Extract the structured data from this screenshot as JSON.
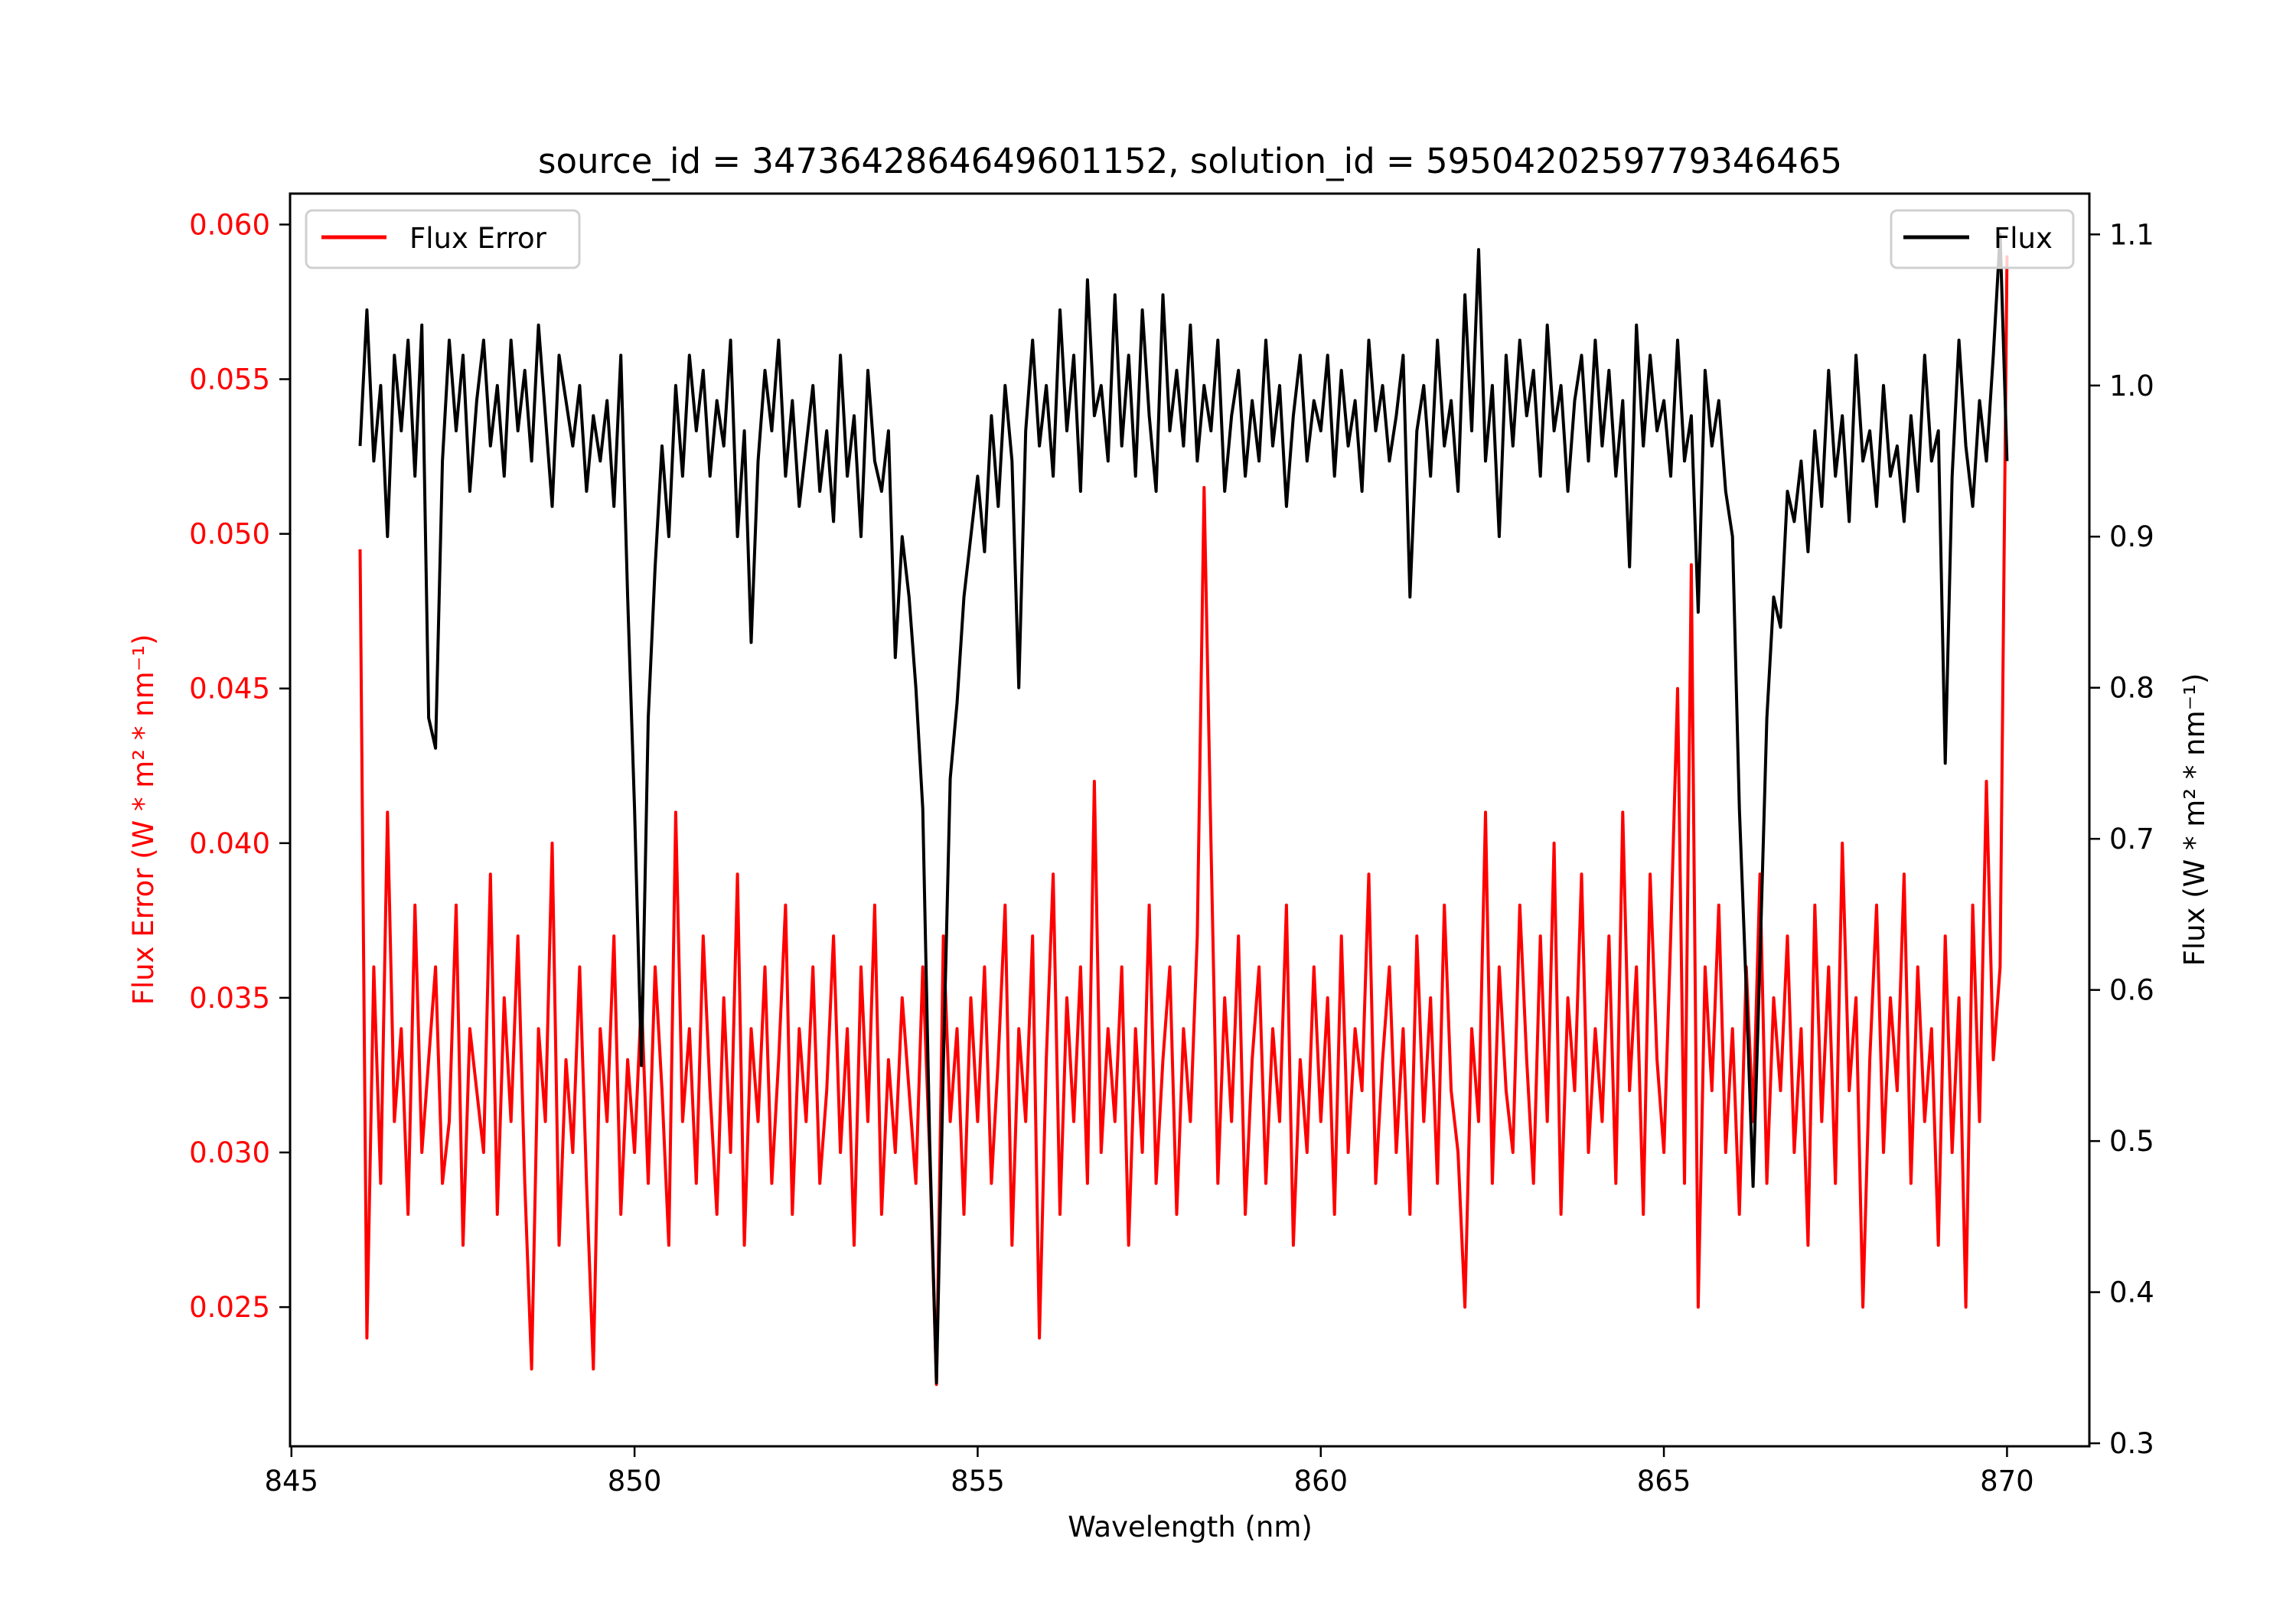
{
  "chart_data": {
    "type": "line",
    "title": "source_id = 3473642864649601152, solution_id = 5950420259779346465",
    "xlabel": "Wavelength (nm)",
    "ylabel_left": "Flux Error (W * m² * nm⁻¹)",
    "ylabel_right": "Flux (W * m² * nm⁻¹)",
    "xlim": [
      844.98,
      871.2
    ],
    "ylim_left": [
      0.0205,
      0.061
    ],
    "ylim_right": [
      0.298,
      1.127
    ],
    "xticks": [
      "845",
      "850",
      "855",
      "860",
      "865",
      "870"
    ],
    "yticks_left": [
      "0.025",
      "0.030",
      "0.035",
      "0.040",
      "0.045",
      "0.050",
      "0.055",
      "0.060"
    ],
    "yticks_right": [
      "0.3",
      "0.4",
      "0.5",
      "0.6",
      "0.7",
      "0.8",
      "0.9",
      "1.0",
      "1.1"
    ],
    "grid": false,
    "x_start": 846.0,
    "x_step": 0.1,
    "series": [
      {
        "name": "Flux Error",
        "axis": "left",
        "color": "#ff0000",
        "legend": "top-left",
        "values": [
          0.0495,
          0.024,
          0.036,
          0.029,
          0.041,
          0.031,
          0.034,
          0.028,
          0.038,
          0.03,
          0.033,
          0.036,
          0.029,
          0.031,
          0.038,
          0.027,
          0.034,
          0.032,
          0.03,
          0.039,
          0.028,
          0.035,
          0.031,
          0.037,
          0.029,
          0.023,
          0.034,
          0.031,
          0.04,
          0.027,
          0.033,
          0.03,
          0.036,
          0.029,
          0.023,
          0.034,
          0.031,
          0.037,
          0.028,
          0.033,
          0.03,
          0.035,
          0.029,
          0.036,
          0.032,
          0.027,
          0.041,
          0.031,
          0.034,
          0.029,
          0.037,
          0.032,
          0.028,
          0.035,
          0.03,
          0.039,
          0.027,
          0.034,
          0.031,
          0.036,
          0.029,
          0.033,
          0.038,
          0.028,
          0.034,
          0.031,
          0.036,
          0.029,
          0.032,
          0.037,
          0.03,
          0.034,
          0.027,
          0.036,
          0.031,
          0.038,
          0.028,
          0.033,
          0.03,
          0.035,
          0.032,
          0.029,
          0.036,
          0.03,
          0.0225,
          0.037,
          0.031,
          0.034,
          0.028,
          0.035,
          0.031,
          0.036,
          0.029,
          0.033,
          0.038,
          0.027,
          0.034,
          0.031,
          0.037,
          0.024,
          0.033,
          0.039,
          0.028,
          0.035,
          0.031,
          0.036,
          0.029,
          0.042,
          0.03,
          0.034,
          0.031,
          0.036,
          0.027,
          0.034,
          0.03,
          0.038,
          0.029,
          0.033,
          0.036,
          0.028,
          0.034,
          0.031,
          0.037,
          0.0515,
          0.04,
          0.029,
          0.035,
          0.031,
          0.037,
          0.028,
          0.033,
          0.036,
          0.029,
          0.034,
          0.031,
          0.038,
          0.027,
          0.033,
          0.03,
          0.036,
          0.031,
          0.035,
          0.028,
          0.037,
          0.03,
          0.034,
          0.032,
          0.039,
          0.029,
          0.033,
          0.036,
          0.03,
          0.034,
          0.028,
          0.037,
          0.031,
          0.035,
          0.029,
          0.038,
          0.032,
          0.03,
          0.025,
          0.034,
          0.031,
          0.041,
          0.029,
          0.036,
          0.032,
          0.03,
          0.038,
          0.033,
          0.029,
          0.037,
          0.031,
          0.04,
          0.028,
          0.035,
          0.032,
          0.039,
          0.03,
          0.034,
          0.031,
          0.037,
          0.029,
          0.041,
          0.032,
          0.036,
          0.028,
          0.039,
          0.033,
          0.03,
          0.037,
          0.045,
          0.029,
          0.049,
          0.025,
          0.036,
          0.032,
          0.038,
          0.03,
          0.034,
          0.028,
          0.036,
          0.031,
          0.039,
          0.029,
          0.035,
          0.032,
          0.037,
          0.03,
          0.034,
          0.027,
          0.038,
          0.031,
          0.036,
          0.029,
          0.04,
          0.032,
          0.035,
          0.025,
          0.033,
          0.038,
          0.03,
          0.035,
          0.032,
          0.039,
          0.029,
          0.036,
          0.031,
          0.034,
          0.027,
          0.037,
          0.03,
          0.035,
          0.025,
          0.038,
          0.031,
          0.042,
          0.033,
          0.036,
          0.059
        ]
      },
      {
        "name": "Flux",
        "axis": "right",
        "color": "#000000",
        "legend": "top-right",
        "values": [
          0.96,
          1.05,
          0.95,
          1.0,
          0.9,
          1.02,
          0.97,
          1.03,
          0.94,
          1.04,
          0.78,
          0.76,
          0.95,
          1.03,
          0.97,
          1.02,
          0.93,
          0.99,
          1.03,
          0.96,
          1.0,
          0.94,
          1.03,
          0.97,
          1.01,
          0.95,
          1.04,
          0.98,
          0.92,
          1.02,
          0.99,
          0.96,
          1.0,
          0.93,
          0.98,
          0.95,
          0.99,
          0.92,
          1.02,
          0.86,
          0.72,
          0.55,
          0.78,
          0.88,
          0.96,
          0.9,
          1.0,
          0.94,
          1.02,
          0.97,
          1.01,
          0.94,
          0.99,
          0.96,
          1.03,
          0.9,
          0.97,
          0.83,
          0.95,
          1.01,
          0.97,
          1.03,
          0.94,
          0.99,
          0.92,
          0.96,
          1.0,
          0.93,
          0.97,
          0.91,
          1.02,
          0.94,
          0.98,
          0.9,
          1.01,
          0.95,
          0.93,
          0.97,
          0.82,
          0.9,
          0.86,
          0.8,
          0.72,
          0.5,
          0.34,
          0.55,
          0.74,
          0.79,
          0.86,
          0.9,
          0.94,
          0.89,
          0.98,
          0.92,
          1.0,
          0.95,
          0.8,
          0.97,
          1.03,
          0.96,
          1.0,
          0.94,
          1.05,
          0.97,
          1.02,
          0.93,
          1.07,
          0.98,
          1.0,
          0.95,
          1.06,
          0.96,
          1.02,
          0.94,
          1.05,
          0.98,
          0.93,
          1.06,
          0.97,
          1.01,
          0.96,
          1.04,
          0.95,
          1.0,
          0.97,
          1.03,
          0.93,
          0.98,
          1.01,
          0.94,
          0.99,
          0.95,
          1.03,
          0.96,
          1.0,
          0.92,
          0.98,
          1.02,
          0.95,
          0.99,
          0.97,
          1.02,
          0.94,
          1.01,
          0.96,
          0.99,
          0.93,
          1.03,
          0.97,
          1.0,
          0.95,
          0.98,
          1.02,
          0.86,
          0.97,
          1.0,
          0.94,
          1.03,
          0.96,
          0.99,
          0.93,
          1.06,
          0.97,
          1.09,
          0.95,
          1.0,
          0.9,
          1.02,
          0.96,
          1.03,
          0.98,
          1.01,
          0.94,
          1.04,
          0.97,
          1.0,
          0.93,
          0.99,
          1.02,
          0.95,
          1.03,
          0.96,
          1.01,
          0.94,
          0.99,
          0.88,
          1.04,
          0.96,
          1.02,
          0.97,
          0.99,
          0.94,
          1.03,
          0.95,
          0.98,
          0.85,
          1.01,
          0.96,
          0.99,
          0.93,
          0.9,
          0.72,
          0.6,
          0.47,
          0.62,
          0.78,
          0.86,
          0.84,
          0.93,
          0.91,
          0.95,
          0.89,
          0.97,
          0.92,
          1.01,
          0.94,
          0.98,
          0.91,
          1.02,
          0.95,
          0.97,
          0.92,
          1.0,
          0.94,
          0.96,
          0.91,
          0.98,
          0.93,
          1.02,
          0.95,
          0.97,
          0.75,
          0.94,
          1.03,
          0.96,
          0.92,
          0.99,
          0.95,
          1.02,
          1.1,
          0.95
        ]
      }
    ]
  }
}
